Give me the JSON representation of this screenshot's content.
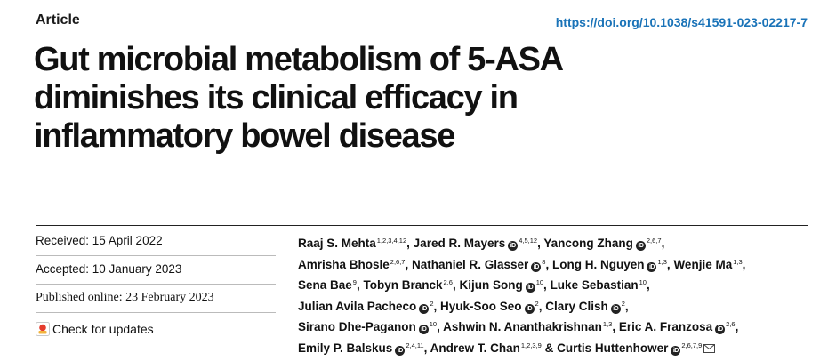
{
  "header": {
    "article_type": "Article",
    "doi": "https://doi.org/10.1038/s41591-023-02217-7"
  },
  "title_lines": [
    "Gut microbial metabolism of 5-ASA",
    "diminishes its clinical efficacy in",
    "inflammatory bowel disease"
  ],
  "dates": {
    "received": "Received: 15 April 2022",
    "accepted": "Accepted: 10 January 2023",
    "published": "Published online: 23 February 2023"
  },
  "check_updates": "Check for updates",
  "author_lines": [
    [
      {
        "name": "Raaj S. Mehta",
        "aff": "1,2,3,4,12",
        "orcid": false,
        "sep": ", "
      },
      {
        "name": "Jared R. Mayers",
        "aff": "4,5,12",
        "orcid": true,
        "sep": ", "
      },
      {
        "name": "Yancong Zhang",
        "aff": "2,6,7",
        "orcid": true,
        "sep": ","
      }
    ],
    [
      {
        "name": "Amrisha Bhosle",
        "aff": "2,6,7",
        "orcid": false,
        "sep": ", "
      },
      {
        "name": "Nathaniel R. Glasser",
        "aff": "8",
        "orcid": true,
        "sep": ", "
      },
      {
        "name": "Long H. Nguyen",
        "aff": "1,3",
        "orcid": true,
        "sep": ", "
      },
      {
        "name": "Wenjie Ma",
        "aff": "1,3",
        "orcid": false,
        "sep": ","
      }
    ],
    [
      {
        "name": "Sena Bae",
        "aff": "9",
        "orcid": false,
        "sep": ", "
      },
      {
        "name": "Tobyn Branck",
        "aff": "2,6",
        "orcid": false,
        "sep": ", "
      },
      {
        "name": "Kijun Song",
        "aff": "10",
        "orcid": true,
        "sep": ", "
      },
      {
        "name": "Luke Sebastian",
        "aff": "10",
        "orcid": false,
        "sep": ","
      }
    ],
    [
      {
        "name": "Julian Avila Pacheco",
        "aff": "2",
        "orcid": true,
        "sep": ", "
      },
      {
        "name": "Hyuk-Soo Seo",
        "aff": "2",
        "orcid": true,
        "sep": ", "
      },
      {
        "name": "Clary Clish",
        "aff": "2",
        "orcid": true,
        "sep": ","
      }
    ],
    [
      {
        "name": "Sirano Dhe-Paganon",
        "aff": "10",
        "orcid": true,
        "sep": ", "
      },
      {
        "name": "Ashwin N. Ananthakrishnan",
        "aff": "1,3",
        "orcid": false,
        "sep": ", "
      },
      {
        "name": "Eric A. Franzosa",
        "aff": "2,6",
        "orcid": true,
        "sep": ","
      }
    ],
    [
      {
        "name": "Emily P. Balskus",
        "aff": "2,4,11",
        "orcid": true,
        "sep": ", "
      },
      {
        "name": "Andrew T. Chan",
        "aff": "1,2,3,9",
        "orcid": false,
        "sep": " & "
      },
      {
        "name": "Curtis Huttenhower",
        "aff": "2,6,7,9",
        "orcid": true,
        "sep": "",
        "mail": true
      }
    ]
  ],
  "orcid_badge": "iD",
  "colors": {
    "link": "#1a73b8",
    "text": "#111111",
    "check_icon": "#e53b2c"
  }
}
